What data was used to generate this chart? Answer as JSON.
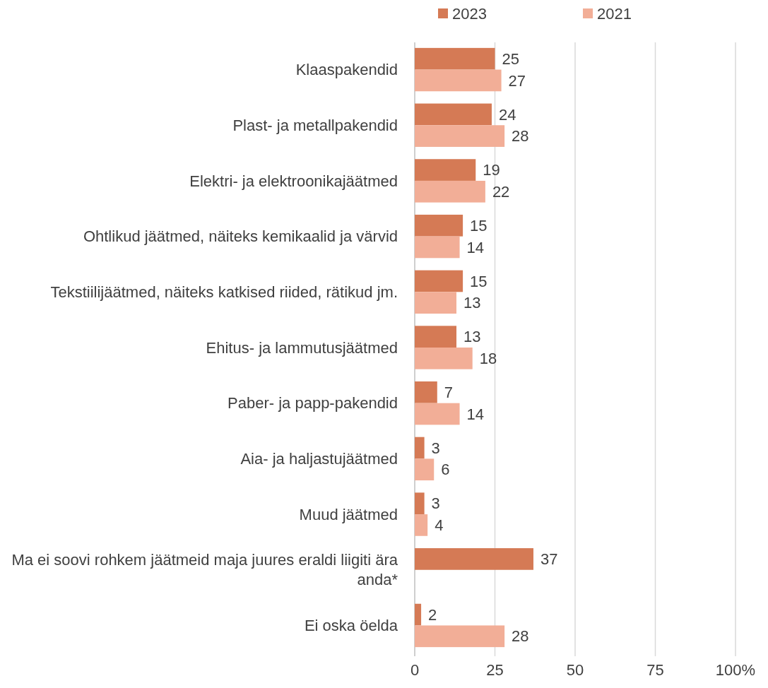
{
  "chart_data": {
    "type": "bar",
    "orientation": "horizontal",
    "categories": [
      "Klaaspakendid",
      "Plast- ja metallpakendid",
      "Elektri- ja elektroonikajäätmed",
      "Ohtlikud jäätmed, näiteks kemikaalid ja värvid",
      "Tekstiilijäätmed, näiteks katkised riided, rätikud jm.",
      "Ehitus- ja lammutusjäätmed",
      "Paber- ja papp-pakendid",
      "Aia- ja haljastujäätmed",
      "Muud jäätmed",
      "Ma ei soovi rohkem jäätmeid maja juures eraldi liigiti ära anda*",
      "Ei oska öelda"
    ],
    "series": [
      {
        "name": "2023",
        "color": "#d57a55",
        "values": [
          25,
          24,
          19,
          15,
          15,
          13,
          7,
          3,
          3,
          37,
          2
        ]
      },
      {
        "name": "2021",
        "color": "#f2ae97",
        "values": [
          27,
          28,
          22,
          14,
          13,
          18,
          14,
          6,
          4,
          null,
          28
        ]
      }
    ],
    "xlim": [
      0,
      100
    ],
    "xticks": [
      0,
      25,
      50,
      75,
      {
        "value": 100,
        "label": "100%"
      }
    ],
    "grid": "x",
    "legend": "top",
    "data_labels": true
  }
}
